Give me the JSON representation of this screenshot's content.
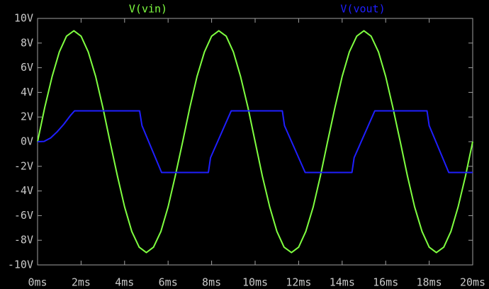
{
  "chart_data": {
    "type": "line",
    "background": "#000000",
    "axis_color": "#a0a0a0",
    "xlim": [
      0,
      20
    ],
    "ylim": [
      -10,
      10
    ],
    "xticks": [
      {
        "value": 0,
        "label": "0ms"
      },
      {
        "value": 2,
        "label": "2ms"
      },
      {
        "value": 4,
        "label": "4ms"
      },
      {
        "value": 6,
        "label": "6ms"
      },
      {
        "value": 8,
        "label": "8ms"
      },
      {
        "value": 10,
        "label": "10ms"
      },
      {
        "value": 12,
        "label": "12ms"
      },
      {
        "value": 14,
        "label": "14ms"
      },
      {
        "value": 16,
        "label": "16ms"
      },
      {
        "value": 18,
        "label": "18ms"
      },
      {
        "value": 20,
        "label": "20ms"
      }
    ],
    "yticks": [
      {
        "value": 10,
        "label": "10V"
      },
      {
        "value": 8,
        "label": "8V"
      },
      {
        "value": 6,
        "label": "6V"
      },
      {
        "value": 4,
        "label": "4V"
      },
      {
        "value": 2,
        "label": "2V"
      },
      {
        "value": 0,
        "label": "0V"
      },
      {
        "value": -2,
        "label": "-2V"
      },
      {
        "value": -4,
        "label": "-4V"
      },
      {
        "value": -6,
        "label": "-6V"
      },
      {
        "value": -8,
        "label": "-8V"
      },
      {
        "value": -10,
        "label": "-10V"
      }
    ],
    "series": [
      {
        "name": "V(vin)",
        "color": "#7fff40",
        "x": [
          0,
          0.33,
          0.67,
          1,
          1.33,
          1.67,
          2,
          2.33,
          2.67,
          3,
          3.33,
          3.67,
          4,
          4.33,
          4.67,
          5,
          5.33,
          5.67,
          6,
          6.33,
          6.67,
          7,
          7.33,
          7.67,
          8,
          8.33,
          8.67,
          9,
          9.33,
          9.67,
          10,
          10.33,
          10.67,
          11,
          11.33,
          11.67,
          12,
          12.33,
          12.67,
          13,
          13.33,
          13.67,
          14,
          14.33,
          14.67,
          15,
          15.33,
          15.67,
          16,
          16.33,
          16.67,
          17,
          17.33,
          17.67,
          18,
          18.33,
          18.67,
          19,
          19.33,
          19.67,
          20
        ],
        "values": [
          0,
          2.78,
          5.29,
          7.28,
          8.56,
          9,
          8.56,
          7.28,
          5.29,
          2.78,
          0,
          -2.78,
          -5.29,
          -7.28,
          -8.56,
          -9,
          -8.56,
          -7.28,
          -5.29,
          -2.78,
          0,
          2.78,
          5.29,
          7.28,
          8.56,
          9,
          8.56,
          7.28,
          5.29,
          2.78,
          0,
          -2.78,
          -5.29,
          -7.28,
          -8.56,
          -9,
          -8.56,
          -7.28,
          -5.29,
          -2.78,
          0,
          2.78,
          5.29,
          7.28,
          8.56,
          9,
          8.56,
          7.28,
          5.29,
          2.78,
          0,
          -2.78,
          -5.29,
          -7.28,
          -8.56,
          -9,
          -8.56,
          -7.28,
          -5.29,
          -2.78,
          0
        ]
      },
      {
        "name": "V(vout)",
        "color": "#1f1fff",
        "x": [
          0,
          0.3,
          0.6,
          0.9,
          1.2,
          1.5,
          1.7,
          4.69,
          4.8,
          5.7,
          7.85,
          7.95,
          8.9,
          11.25,
          11.35,
          12.3,
          14.45,
          14.55,
          15.5,
          17.9,
          18,
          18.9,
          20
        ],
        "values": [
          0,
          0.02,
          0.3,
          0.8,
          1.4,
          2.1,
          2.5,
          2.5,
          1.3,
          -2.5,
          -2.5,
          -1.3,
          2.5,
          2.5,
          1.3,
          -2.5,
          -2.5,
          -1.3,
          2.5,
          2.5,
          1.3,
          -2.5,
          -2.5
        ]
      }
    ]
  }
}
